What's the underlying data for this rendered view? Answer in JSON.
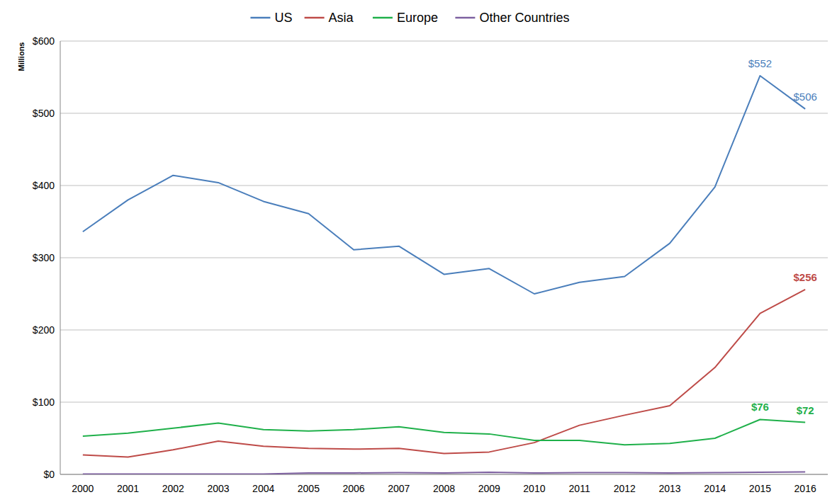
{
  "chart_data": {
    "type": "line",
    "y_label": "Millions",
    "categories": [
      "2000",
      "2001",
      "2002",
      "2003",
      "2004",
      "2005",
      "2006",
      "2007",
      "2008",
      "2009",
      "2010",
      "2011",
      "2012",
      "2013",
      "2014",
      "2015",
      "2016"
    ],
    "series": [
      {
        "name": "US",
        "color": "#4a7ebb",
        "values": [
          336,
          380,
          414,
          404,
          378,
          361,
          311,
          316,
          277,
          285,
          250,
          266,
          274,
          320,
          398,
          552,
          506
        ],
        "value_labels": [
          null,
          null,
          null,
          null,
          null,
          null,
          null,
          null,
          null,
          null,
          null,
          null,
          null,
          null,
          null,
          "$552",
          "$506"
        ]
      },
      {
        "name": "Asia",
        "color": "#be4b48",
        "values": [
          27,
          24,
          34,
          46,
          39,
          36,
          35,
          36,
          29,
          31,
          44,
          68,
          82,
          95,
          148,
          223,
          256
        ],
        "value_labels": [
          null,
          null,
          null,
          null,
          null,
          null,
          null,
          null,
          null,
          null,
          null,
          null,
          null,
          null,
          null,
          null,
          "$256"
        ]
      },
      {
        "name": "Europe",
        "color": "#1fb04a",
        "values": [
          53,
          57,
          64,
          71,
          62,
          60,
          62,
          66,
          58,
          56,
          47,
          47,
          41,
          43,
          50,
          76,
          72
        ],
        "value_labels": [
          null,
          null,
          null,
          null,
          null,
          null,
          null,
          null,
          null,
          null,
          null,
          null,
          null,
          null,
          null,
          "$76",
          "$72"
        ]
      },
      {
        "name": "Other Countries",
        "color": "#7d60a0",
        "values": [
          0.5,
          0.5,
          0.5,
          0.5,
          0.5,
          2,
          2,
          2.5,
          2,
          3,
          2,
          2.5,
          2.5,
          2,
          2.5,
          3,
          3.5
        ]
      }
    ],
    "ylim": [
      0,
      600
    ],
    "yticks": [
      {
        "value": 0,
        "label": "$0"
      },
      {
        "value": 100,
        "label": "$100"
      },
      {
        "value": 200,
        "label": "$200"
      },
      {
        "value": 300,
        "label": "$300"
      },
      {
        "value": 400,
        "label": "$400"
      },
      {
        "value": 500,
        "label": "$500"
      },
      {
        "value": 600,
        "label": "$600"
      }
    ],
    "grid": true,
    "legend": "top"
  }
}
